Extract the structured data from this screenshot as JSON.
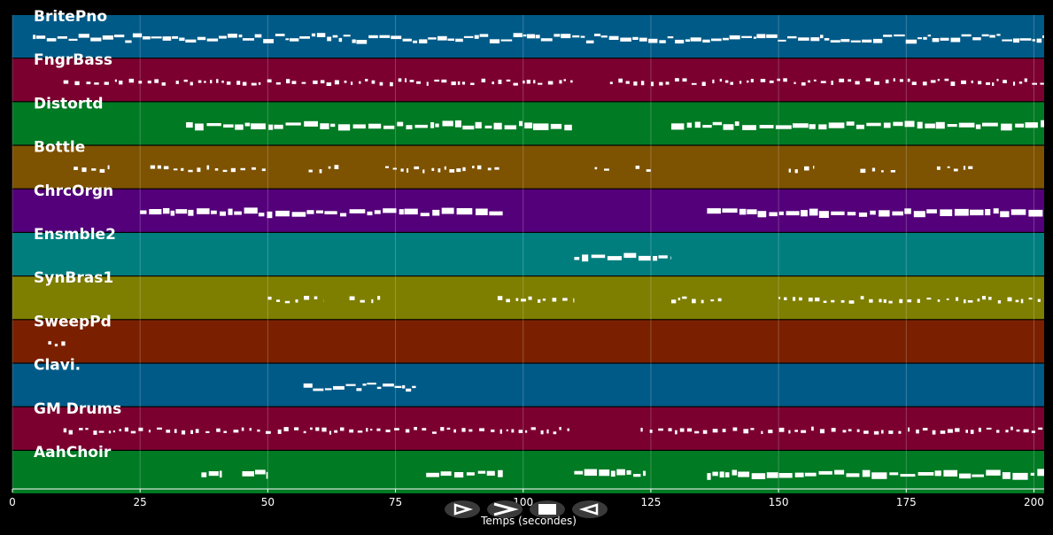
{
  "app": {
    "axis_title": "Temps (secondes)",
    "x_ticks": [
      0,
      25,
      50,
      75,
      100,
      125,
      150,
      175,
      200
    ],
    "x_range": [
      0,
      202
    ],
    "grid": true
  },
  "transport": [
    {
      "name": "play-button",
      "icon": "play-outline-icon"
    },
    {
      "name": "forward-button",
      "icon": "forward-chevron-icon"
    },
    {
      "name": "stop-button",
      "icon": "stop-icon"
    },
    {
      "name": "rewind-button",
      "icon": "rewind-outline-icon"
    }
  ],
  "tracks": [
    {
      "name": "BritePno",
      "color": "#005a87",
      "texture": "dense",
      "notes": [
        [
          4,
          202
        ]
      ]
    },
    {
      "name": "FngrBass",
      "color": "#7b0030",
      "texture": "sparse",
      "notes": [
        [
          10,
          30
        ],
        [
          32,
          110
        ],
        [
          117,
          202
        ]
      ]
    },
    {
      "name": "Distortd",
      "color": "#007a23",
      "texture": "block",
      "notes": [
        [
          34,
          110
        ],
        [
          129,
          202
        ]
      ]
    },
    {
      "name": "Bottle",
      "color": "#7d5200",
      "texture": "sparse",
      "notes": [
        [
          12,
          19
        ],
        [
          27,
          50
        ],
        [
          58,
          65
        ],
        [
          73,
          96
        ],
        [
          114,
          117
        ],
        [
          122,
          126
        ],
        [
          152,
          157
        ],
        [
          166,
          173
        ],
        [
          181,
          188
        ]
      ]
    },
    {
      "name": "ChrcOrgn",
      "color": "#54007a",
      "texture": "block",
      "notes": [
        [
          25,
          96
        ],
        [
          136,
          202
        ]
      ]
    },
    {
      "name": "Ensmble2",
      "color": "#007e7e",
      "texture": "block",
      "notes": [
        [
          110,
          129
        ]
      ]
    },
    {
      "name": "SynBras1",
      "color": "#7e7e00",
      "texture": "sparse",
      "notes": [
        [
          50,
          61
        ],
        [
          66,
          72
        ],
        [
          95,
          110
        ],
        [
          129,
          139
        ],
        [
          150,
          202
        ]
      ]
    },
    {
      "name": "SweepPd",
      "color": "#7a2000",
      "texture": "sparse",
      "notes": [
        [
          7,
          11
        ]
      ]
    },
    {
      "name": "Clavi.",
      "color": "#005a87",
      "texture": "dense",
      "notes": [
        [
          57,
          79
        ]
      ]
    },
    {
      "name": "GM Drums",
      "color": "#7b0030",
      "texture": "sparse",
      "notes": [
        [
          10,
          110
        ],
        [
          123,
          202
        ]
      ]
    },
    {
      "name": "AahChoir",
      "color": "#007a23",
      "texture": "block",
      "notes": [
        [
          37,
          41
        ],
        [
          45,
          50
        ],
        [
          81,
          96
        ],
        [
          110,
          124
        ],
        [
          136,
          202
        ]
      ]
    }
  ]
}
